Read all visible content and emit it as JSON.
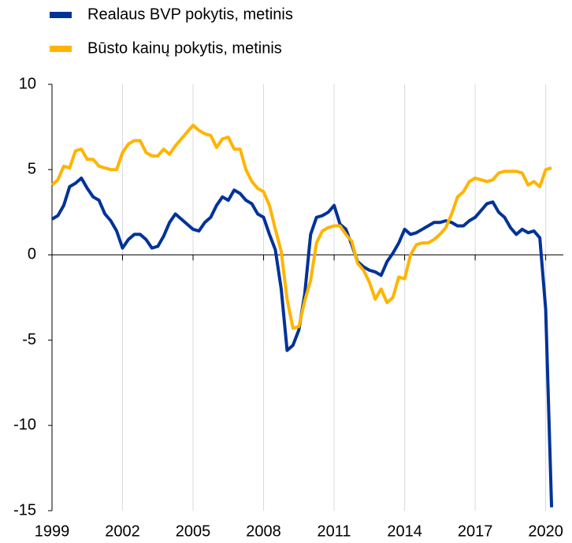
{
  "chart_data": {
    "type": "line",
    "legend_position": "top-left",
    "grid": true,
    "x": [
      1999,
      1999.25,
      1999.5,
      1999.75,
      2000,
      2000.25,
      2000.5,
      2000.75,
      2001,
      2001.25,
      2001.5,
      2001.75,
      2002,
      2002.25,
      2002.5,
      2002.75,
      2003,
      2003.25,
      2003.5,
      2003.75,
      2004,
      2004.25,
      2004.5,
      2004.75,
      2005,
      2005.25,
      2005.5,
      2005.75,
      2006,
      2006.25,
      2006.5,
      2006.75,
      2007,
      2007.25,
      2007.5,
      2007.75,
      2008,
      2008.25,
      2008.5,
      2008.75,
      2009,
      2009.25,
      2009.5,
      2009.75,
      2010,
      2010.25,
      2010.5,
      2010.75,
      2011,
      2011.25,
      2011.5,
      2011.75,
      2012,
      2012.25,
      2012.5,
      2012.75,
      2013,
      2013.25,
      2013.5,
      2013.75,
      2014,
      2014.25,
      2014.5,
      2014.75,
      2015,
      2015.25,
      2015.5,
      2015.75,
      2016,
      2016.25,
      2016.5,
      2016.75,
      2017,
      2017.25,
      2017.5,
      2017.75,
      2018,
      2018.25,
      2018.5,
      2018.75,
      2019,
      2019.25,
      2019.5,
      2019.75,
      2020,
      2020.25
    ],
    "series": [
      {
        "name": "Realaus BVP pokytis, metinis",
        "color": "#003299",
        "values": [
          2.1,
          2.3,
          2.9,
          4.0,
          4.2,
          4.5,
          3.9,
          3.4,
          3.2,
          2.4,
          2.0,
          1.4,
          0.4,
          0.9,
          1.2,
          1.2,
          0.9,
          0.4,
          0.5,
          1.1,
          1.9,
          2.4,
          2.1,
          1.8,
          1.5,
          1.4,
          1.9,
          2.2,
          2.9,
          3.4,
          3.2,
          3.8,
          3.6,
          3.2,
          3.0,
          2.4,
          2.2,
          1.2,
          0.3,
          -2.0,
          -5.6,
          -5.3,
          -4.4,
          -2.3,
          1.2,
          2.2,
          2.3,
          2.5,
          2.9,
          1.8,
          1.5,
          0.6,
          -0.4,
          -0.7,
          -0.9,
          -1.0,
          -1.2,
          -0.4,
          0.1,
          0.7,
          1.5,
          1.2,
          1.3,
          1.5,
          1.7,
          1.9,
          1.9,
          2.0,
          1.9,
          1.7,
          1.7,
          2.0,
          2.2,
          2.6,
          3.0,
          3.1,
          2.5,
          2.2,
          1.6,
          1.2,
          1.5,
          1.3,
          1.4,
          1.0,
          -3.2,
          -14.8
        ]
      },
      {
        "name": "Būsto kainų pokytis, metinis",
        "color": "#FFB400",
        "values": [
          4.1,
          4.4,
          5.2,
          5.1,
          6.1,
          6.2,
          5.6,
          5.6,
          5.2,
          5.1,
          5.0,
          5.0,
          6.0,
          6.5,
          6.7,
          6.7,
          6.0,
          5.8,
          5.8,
          6.2,
          5.9,
          6.4,
          6.8,
          7.2,
          7.6,
          7.3,
          7.1,
          7.0,
          6.3,
          6.8,
          6.9,
          6.2,
          6.2,
          5.0,
          4.3,
          3.9,
          3.7,
          2.9,
          1.5,
          0.2,
          -2.6,
          -4.3,
          -4.2,
          -2.7,
          -1.5,
          0.7,
          1.4,
          1.6,
          1.7,
          1.7,
          1.2,
          0.8,
          -0.5,
          -0.9,
          -1.6,
          -2.6,
          -2.0,
          -2.8,
          -2.5,
          -1.3,
          -1.4,
          0.0,
          0.6,
          0.7,
          0.7,
          0.9,
          1.2,
          1.6,
          2.4,
          3.4,
          3.7,
          4.3,
          4.5,
          4.4,
          4.3,
          4.4,
          4.8,
          4.9,
          4.9,
          4.9,
          4.8,
          4.1,
          4.3,
          4.0,
          5.0,
          5.1
        ]
      }
    ],
    "xlim": [
      1999,
      2020.75
    ],
    "xticks": [
      1999,
      2002,
      2005,
      2008,
      2011,
      2014,
      2017,
      2020
    ],
    "ylim": [
      -15,
      10
    ],
    "yticks": [
      -15,
      -10,
      -5,
      0,
      5,
      10
    ]
  }
}
